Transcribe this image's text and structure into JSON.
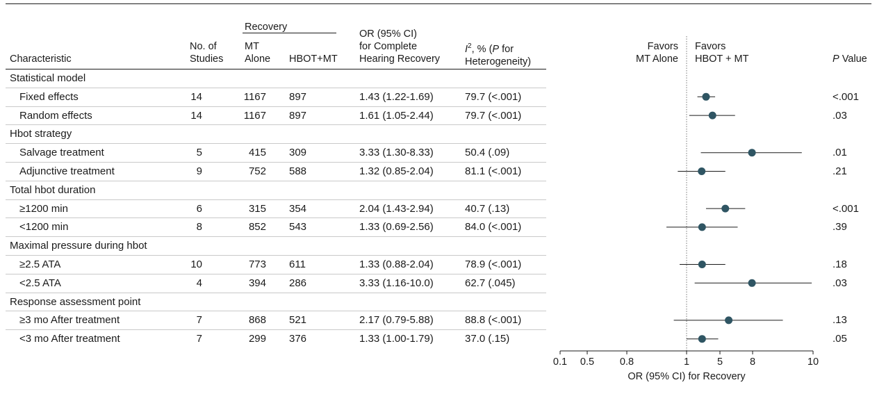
{
  "headers": {
    "characteristic": "Characteristic",
    "studies": [
      "No. of",
      "Studies"
    ],
    "recovery": "Recovery",
    "mt_alone": [
      "MT",
      "Alone"
    ],
    "hbot_mt": "HBOT+MT",
    "or": [
      "OR (95% CI)",
      "for Complete",
      "Hearing Recovery"
    ],
    "i2_sup": "2",
    "i2_line1_tail": ", % (",
    "i2_p": "P",
    "i2_line1_end": " for",
    "i2_line2": "Heterogeneity)",
    "favors_left": [
      "Favors",
      "MT Alone"
    ],
    "favors_right": [
      "Favors",
      "HBOT + MT"
    ],
    "pvalue_p": "P",
    "pvalue_rest": " Value"
  },
  "rows": [
    {
      "type": "group",
      "label": "Statistical model"
    },
    {
      "type": "item",
      "label": "Fixed effects",
      "studies": "14",
      "mt": "1167",
      "hbot": "897",
      "or_text": "1.43 (1.22-1.69)",
      "i2": "79.7 (<.001)",
      "p": "<.001"
    },
    {
      "type": "item",
      "label": "Random effects",
      "studies": "14",
      "mt": "1167",
      "hbot": "897",
      "or_text": "1.61 (1.05-2.44)",
      "i2": "79.7 (<.001)",
      "p": ".03"
    },
    {
      "type": "group",
      "label": "Hbot strategy"
    },
    {
      "type": "item",
      "label": "Salvage treatment",
      "studies": "5",
      "mt": "415",
      "hbot": "309",
      "or_text": "3.33 (1.30-8.33)",
      "i2": "50.4 (.09)",
      "p": ".01"
    },
    {
      "type": "item",
      "label": "Adjunctive treatment",
      "studies": "9",
      "mt": "752",
      "hbot": "588",
      "or_text": "1.32 (0.85-2.04)",
      "i2": "81.1 (<.001)",
      "p": ".21"
    },
    {
      "type": "group",
      "label": "Total hbot duration"
    },
    {
      "type": "item",
      "label": "≥1200 min",
      "studies": "6",
      "mt": "315",
      "hbot": "354",
      "or_text": "2.04 (1.43-2.94)",
      "i2": "40.7 (.13)",
      "p": "<.001"
    },
    {
      "type": "item",
      "label": "<1200 min",
      "studies": "8",
      "mt": "852",
      "hbot": "543",
      "or_text": "1.33 (0.69-2.56)",
      "i2": "84.0 (<.001)",
      "p": ".39"
    },
    {
      "type": "group",
      "label": "Maximal pressure during hbot"
    },
    {
      "type": "item",
      "label": "≥2.5 ATA",
      "studies": "10",
      "mt": "773",
      "hbot": "611",
      "or_text": "1.33 (0.88-2.04)",
      "i2": "78.9 (<.001)",
      "p": ".18"
    },
    {
      "type": "item",
      "label": "<2.5 ATA",
      "studies": "4",
      "mt": "394",
      "hbot": "286",
      "or_text": "3.33 (1.16-10.0)",
      "i2": "62.7 (.045)",
      "p": ".03"
    },
    {
      "type": "group",
      "label": "Response assessment point"
    },
    {
      "type": "item",
      "label": "≥3 mo After treatment",
      "studies": "7",
      "mt": "868",
      "hbot": "521",
      "or_text": "2.17 (0.79-5.88)",
      "i2": "88.8 (<.001)",
      "p": ".13"
    },
    {
      "type": "item",
      "label": "<3 mo After treatment",
      "studies": "7",
      "mt": "299",
      "hbot": "376",
      "or_text": "1.33 (1.00-1.79)",
      "i2": "37.0 (.15)",
      "p": ".05"
    }
  ],
  "chart_data": {
    "type": "forest",
    "xlabel": "OR (95% CI) for Recovery",
    "xticks": [
      "0.1",
      "0.5",
      "0.8",
      "1",
      "5",
      "8",
      "10"
    ],
    "reference_line": "1",
    "points": [
      {
        "row": "Fixed effects",
        "or": 1.43,
        "lo": 1.22,
        "hi": 1.69
      },
      {
        "row": "Random effects",
        "or": 1.61,
        "lo": 1.05,
        "hi": 2.44
      },
      {
        "row": "Salvage treatment",
        "or": 3.33,
        "lo": 1.3,
        "hi": 8.33
      },
      {
        "row": "Adjunctive treatment",
        "or": 1.32,
        "lo": 0.85,
        "hi": 2.04
      },
      {
        "row": "≥1200 min",
        "or": 2.04,
        "lo": 1.43,
        "hi": 2.94
      },
      {
        "row": "<1200 min",
        "or": 1.33,
        "lo": 0.69,
        "hi": 2.56
      },
      {
        "row": "≥2.5 ATA",
        "or": 1.33,
        "lo": 0.88,
        "hi": 2.04
      },
      {
        "row": "<2.5 ATA",
        "or": 3.33,
        "lo": 1.16,
        "hi": 10.0
      },
      {
        "row": "≥3 mo After treatment",
        "or": 2.17,
        "lo": 0.79,
        "hi": 5.88
      },
      {
        "row": "<3 mo After treatment",
        "or": 1.33,
        "lo": 1.0,
        "hi": 1.79
      }
    ],
    "colors": {
      "marker": "#2f5563",
      "line": "#1a1a1a",
      "ref": "#777777"
    }
  }
}
